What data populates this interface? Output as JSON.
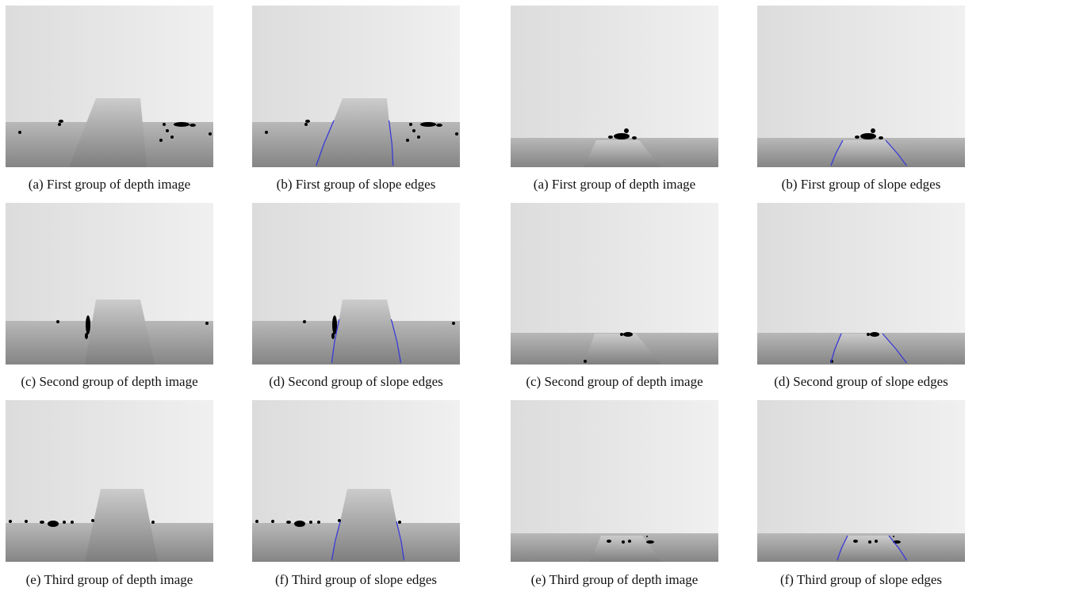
{
  "figures": [
    {
      "panels": [
        {
          "caption": "(a) First group of depth image"
        },
        {
          "caption": "(b) First group of slope edges"
        },
        {
          "caption": "(c) Second group of depth image"
        },
        {
          "caption": "(d) Second group of slope edges"
        },
        {
          "caption": "(e) Third group of depth image"
        },
        {
          "caption": "(f) Third group of slope edges"
        }
      ]
    },
    {
      "panels": [
        {
          "caption": "(a) First group of depth image"
        },
        {
          "caption": "(b) First group of slope edges"
        },
        {
          "caption": "(c) Second group of depth image"
        },
        {
          "caption": "(d) Second group of slope edges"
        },
        {
          "caption": "(e) Third group of depth image"
        },
        {
          "caption": "(f) Third group of slope edges"
        }
      ]
    }
  ],
  "colors": {
    "edge_line": "#3a3ad8",
    "background": "#ffffff",
    "caption_text": "#111111"
  }
}
